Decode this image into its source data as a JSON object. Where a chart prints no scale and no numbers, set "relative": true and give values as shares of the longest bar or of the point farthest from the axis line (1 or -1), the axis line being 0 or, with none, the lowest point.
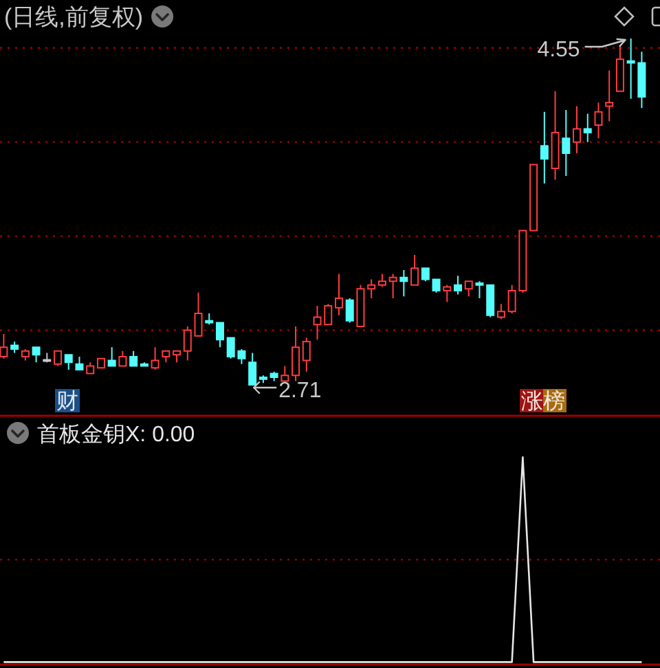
{
  "chart_data": [
    {
      "type": "candlestick",
      "title": "(日线,前复权)",
      "categories": [
        null,
        null,
        null,
        null,
        null,
        null,
        null,
        null,
        null,
        null,
        null,
        null,
        null,
        null,
        null,
        null,
        null,
        null,
        null,
        null,
        null,
        null,
        null,
        null,
        null,
        null,
        null,
        null,
        null,
        null,
        null,
        null,
        null,
        null,
        null,
        null,
        null,
        null,
        null,
        null,
        null,
        null,
        null,
        null,
        null,
        null,
        null,
        null,
        null,
        null,
        null,
        null,
        null,
        null,
        null,
        null,
        null,
        null,
        null,
        null
      ],
      "ohlc": [
        [
          2.86,
          2.98,
          2.85,
          2.91
        ],
        [
          2.92,
          2.94,
          2.88,
          2.9
        ],
        [
          2.86,
          2.9,
          2.84,
          2.89
        ],
        [
          2.91,
          2.91,
          2.83,
          2.87
        ],
        [
          2.84,
          2.88,
          2.83,
          2.84
        ],
        [
          2.82,
          2.89,
          2.81,
          2.89
        ],
        [
          2.87,
          2.87,
          2.79,
          2.83
        ],
        [
          2.82,
          2.86,
          2.79,
          2.79
        ],
        [
          2.77,
          2.83,
          2.77,
          2.81
        ],
        [
          2.8,
          2.85,
          2.8,
          2.85
        ],
        [
          2.84,
          2.91,
          2.81,
          2.81
        ],
        [
          2.81,
          2.89,
          2.81,
          2.86
        ],
        [
          2.86,
          2.89,
          2.81,
          2.81
        ],
        [
          2.82,
          2.83,
          2.81,
          2.81
        ],
        [
          2.8,
          2.91,
          2.79,
          2.84
        ],
        [
          2.86,
          2.89,
          2.83,
          2.89
        ],
        [
          2.87,
          2.89,
          2.83,
          2.89
        ],
        [
          2.89,
          3.02,
          2.84,
          3.0
        ],
        [
          2.97,
          3.2,
          2.97,
          3.09
        ],
        [
          3.05,
          3.09,
          3.03,
          3.04
        ],
        [
          3.04,
          3.04,
          2.91,
          2.95
        ],
        [
          2.96,
          2.96,
          2.85,
          2.86
        ],
        [
          2.89,
          2.9,
          2.82,
          2.85
        ],
        [
          2.83,
          2.88,
          2.71,
          2.71
        ],
        [
          2.75,
          2.76,
          2.72,
          2.74
        ],
        [
          2.77,
          2.78,
          2.73,
          2.75
        ],
        [
          2.73,
          2.81,
          2.72,
          2.76
        ],
        [
          2.76,
          3.02,
          2.73,
          2.91
        ],
        [
          2.84,
          2.96,
          2.78,
          2.94
        ],
        [
          3.03,
          3.13,
          2.95,
          3.07
        ],
        [
          3.03,
          3.14,
          3.03,
          3.13
        ],
        [
          3.12,
          3.3,
          3.08,
          3.17
        ],
        [
          3.16,
          3.17,
          3.04,
          3.05
        ],
        [
          3.02,
          3.24,
          3.02,
          3.22
        ],
        [
          3.22,
          3.27,
          3.17,
          3.24
        ],
        [
          3.24,
          3.3,
          3.23,
          3.26
        ],
        [
          3.26,
          3.3,
          3.17,
          3.28
        ],
        [
          3.28,
          3.32,
          3.18,
          3.26
        ],
        [
          3.24,
          3.4,
          3.24,
          3.33
        ],
        [
          3.33,
          3.33,
          3.26,
          3.27
        ],
        [
          3.27,
          3.27,
          3.2,
          3.21
        ],
        [
          3.21,
          3.24,
          3.15,
          3.23
        ],
        [
          3.24,
          3.29,
          3.19,
          3.21
        ],
        [
          3.22,
          3.26,
          3.18,
          3.26
        ],
        [
          3.25,
          3.26,
          3.17,
          3.24
        ],
        [
          3.24,
          3.24,
          3.07,
          3.08
        ],
        [
          3.07,
          3.14,
          3.06,
          3.1
        ],
        [
          3.1,
          3.24,
          3.09,
          3.21
        ],
        [
          3.21,
          3.53,
          3.2,
          3.53
        ],
        [
          3.53,
          3.88,
          3.53,
          3.88
        ],
        [
          3.98,
          4.16,
          3.78,
          3.91
        ],
        [
          3.86,
          4.27,
          3.8,
          4.05
        ],
        [
          4.02,
          4.17,
          3.82,
          3.94
        ],
        [
          4.0,
          4.19,
          3.94,
          4.07
        ],
        [
          4.07,
          4.15,
          4.0,
          4.05
        ],
        [
          4.09,
          4.21,
          4.02,
          4.16
        ],
        [
          4.19,
          4.38,
          4.11,
          4.21
        ],
        [
          4.27,
          4.51,
          4.27,
          4.44
        ],
        [
          4.43,
          4.55,
          4.23,
          4.42
        ],
        [
          4.42,
          4.48,
          4.18,
          4.24
        ]
      ],
      "colors": [
        "#ff3c3c",
        "#54fcfc",
        "#ff3c3c",
        "#54fcfc",
        "#c8c8c8",
        "#ff3c3c",
        "#54fcfc",
        "#54fcfc",
        "#ff3c3c",
        "#ff3c3c",
        "#54fcfc",
        "#ff3c3c",
        "#54fcfc",
        "#54fcfc",
        "#ff3c3c",
        "#ff3c3c",
        "#ff3c3c",
        "#ff3c3c",
        "#ff3c3c",
        "#54fcfc",
        "#54fcfc",
        "#54fcfc",
        "#54fcfc",
        "#54fcfc",
        "#54fcfc",
        "#54fcfc",
        "#ff3c3c",
        "#ff3c3c",
        "#ff3c3c",
        "#ff3c3c",
        "#ff3c3c",
        "#ff3c3c",
        "#54fcfc",
        "#ff3c3c",
        "#ff3c3c",
        "#ff3c3c",
        "#ff3c3c",
        "#54fcfc",
        "#ff3c3c",
        "#54fcfc",
        "#54fcfc",
        "#ff3c3c",
        "#54fcfc",
        "#ff3c3c",
        "#54fcfc",
        "#54fcfc",
        "#ff3c3c",
        "#ff3c3c",
        "#ff3c3c",
        "#ff3c3c",
        "#54fcfc",
        "#ff3c3c",
        "#54fcfc",
        "#ff3c3c",
        "#54fcfc",
        "#ff3c3c",
        "#ff3c3c",
        "#ff3c3c",
        "#54fcfc",
        "#54fcfc"
      ],
      "yticks": [
        {
          "value": 3,
          "label": null
        },
        {
          "value": 3.5,
          "label": null
        },
        {
          "value": 4,
          "label": null
        },
        {
          "value": 4.5,
          "label": null
        }
      ],
      "grid": "y",
      "annotations": [
        "4.55",
        "2.71",
        "财",
        "涨榜"
      ]
    },
    {
      "type": "line",
      "categories": [
        null,
        null,
        null,
        null,
        null,
        null,
        null,
        null,
        null,
        null,
        null,
        null,
        null,
        null,
        null,
        null,
        null,
        null,
        null,
        null,
        null,
        null,
        null,
        null,
        null,
        null,
        null,
        null,
        null,
        null,
        null,
        null,
        null,
        null,
        null,
        null,
        null,
        null,
        null,
        null,
        null,
        null,
        null,
        null,
        null,
        null,
        null,
        null,
        null,
        null,
        null,
        null,
        null,
        null,
        null,
        null,
        null,
        null,
        null,
        null
      ],
      "series": [
        {
          "name": "首板金钥X: 0.00",
          "color": "#e6e6e6",
          "values": [
            0,
            0,
            0,
            0,
            0,
            0,
            0,
            0,
            0,
            0,
            0,
            0,
            0,
            0,
            0,
            0,
            0,
            0,
            0,
            0,
            0,
            0,
            0,
            0,
            0,
            0,
            0,
            0,
            0,
            0,
            0,
            0,
            0,
            0,
            0,
            0,
            0,
            0,
            0,
            0,
            0,
            0,
            0,
            0,
            0,
            0,
            0,
            0,
            1,
            0,
            0,
            0,
            0,
            0,
            0,
            0,
            0,
            0,
            0,
            0
          ]
        }
      ],
      "relative": true,
      "ref_lines": [
        {
          "axis": "y",
          "value": 0.5,
          "color": "#a00000",
          "line_style": "dotted"
        }
      ],
      "legend": "top left"
    }
  ]
}
